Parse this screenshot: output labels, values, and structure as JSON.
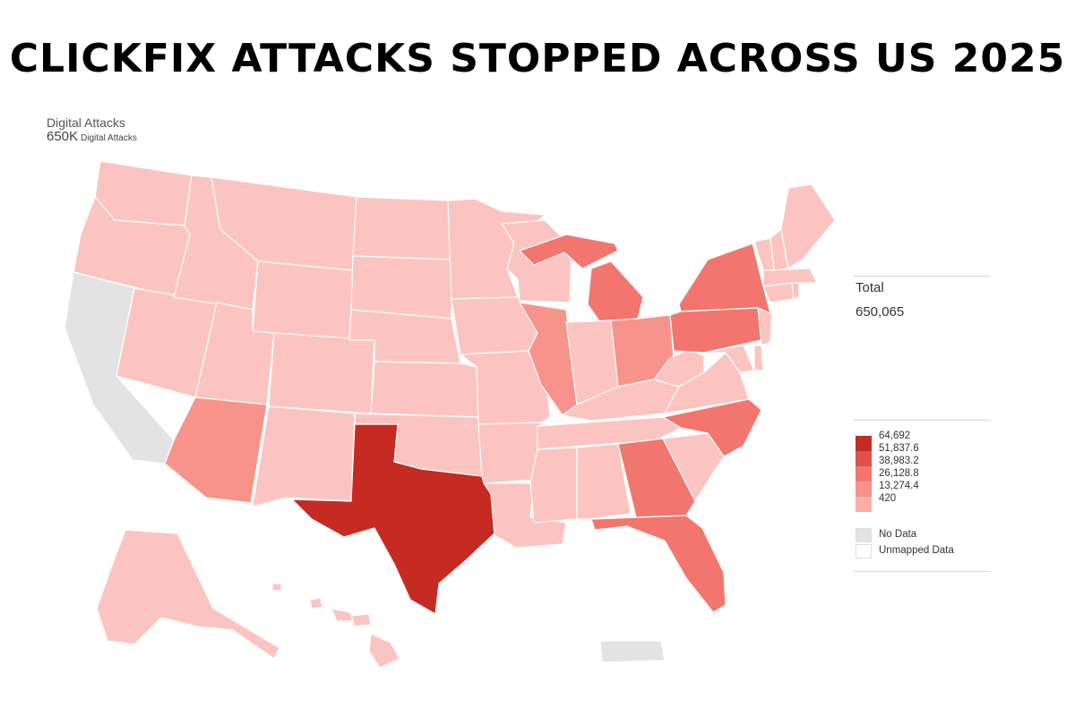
{
  "title": "CLICKFIX ATTACKS STOPPED ACROSS US 2025",
  "metric": {
    "name": "Digital Attacks",
    "value": "650K",
    "unit": "Digital Attacks"
  },
  "total": {
    "label": "Total",
    "value": "650,065"
  },
  "legend": {
    "stops": [
      "64,692",
      "51,837.6",
      "38,983.2",
      "26,128.8",
      "13,274.4",
      "420"
    ],
    "colors": [
      "#c52b22",
      "#e0514a",
      "#f2766d",
      "#f8938b",
      "#fbaea8",
      "#fcc4c0"
    ],
    "no_data_label": "No Data",
    "unmapped_label": "Unmapped Data",
    "no_data_color": "#e3e3e3",
    "unmapped_color": "#ffffff"
  },
  "map_data": {
    "type": "choropleth",
    "region": "United States",
    "levels": {
      "Texas": "64,692",
      "Florida": "38,983.2",
      "Georgia": "38,983.2",
      "North Carolina": "38,983.2",
      "Michigan": "38,983.2",
      "New York": "38,983.2",
      "Pennsylvania": "38,983.2",
      "Arizona": "26,128.8",
      "Illinois": "26,128.8",
      "Ohio": "26,128.8",
      "California": "No Data",
      "Puerto Rico": "No Data"
    },
    "default_level": "420"
  }
}
